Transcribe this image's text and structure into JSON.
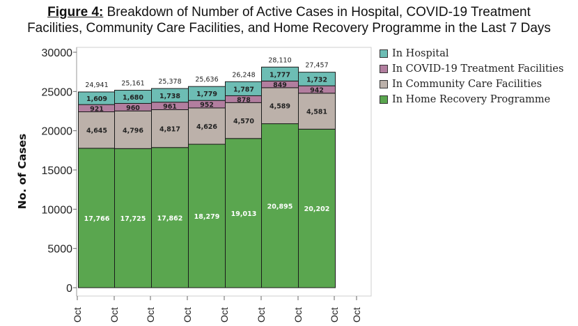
{
  "figure": {
    "label": "Figure 4:",
    "title_line1": "Breakdown of Number of Active Cases in Hospital, COVID-19 Treatment",
    "title_line2": "Facilities, Community Care Facilities, and Home Recovery Programme in the Last 7 Days"
  },
  "chart_data": {
    "type": "bar",
    "stacked": true,
    "ylabel": "No. of Cases",
    "ylim": [
      0,
      30000
    ],
    "yticks": [
      0,
      5000,
      10000,
      15000,
      20000,
      25000,
      30000
    ],
    "xtick_label": "Oct",
    "categories": [
      "",
      "",
      "",
      "",
      "",
      "",
      ""
    ],
    "series": [
      {
        "name": "In Home Recovery Programme",
        "color": "#5aa64f",
        "values": [
          17766,
          17725,
          17862,
          18279,
          19013,
          20895,
          20202
        ]
      },
      {
        "name": "In Community Care Facilities",
        "color": "#bcb1aa",
        "values": [
          4645,
          4796,
          4817,
          4626,
          4570,
          4589,
          4581
        ]
      },
      {
        "name": "In COVID-19 Treatment Facilities",
        "color": "#b27e9f",
        "values": [
          921,
          960,
          961,
          952,
          878,
          849,
          942
        ]
      },
      {
        "name": "In Hospital",
        "color": "#6dbdb4",
        "values": [
          1609,
          1680,
          1738,
          1779,
          1787,
          1777,
          1732
        ]
      }
    ],
    "totals": [
      24941,
      25161,
      25378,
      25636,
      26248,
      28110,
      27457
    ],
    "legend_order": [
      "In Hospital",
      "In COVID-19 Treatment Facilities",
      "In Community Care Facilities",
      "In Home Recovery Programme"
    ],
    "legend_position": "top-right",
    "grid": false
  }
}
